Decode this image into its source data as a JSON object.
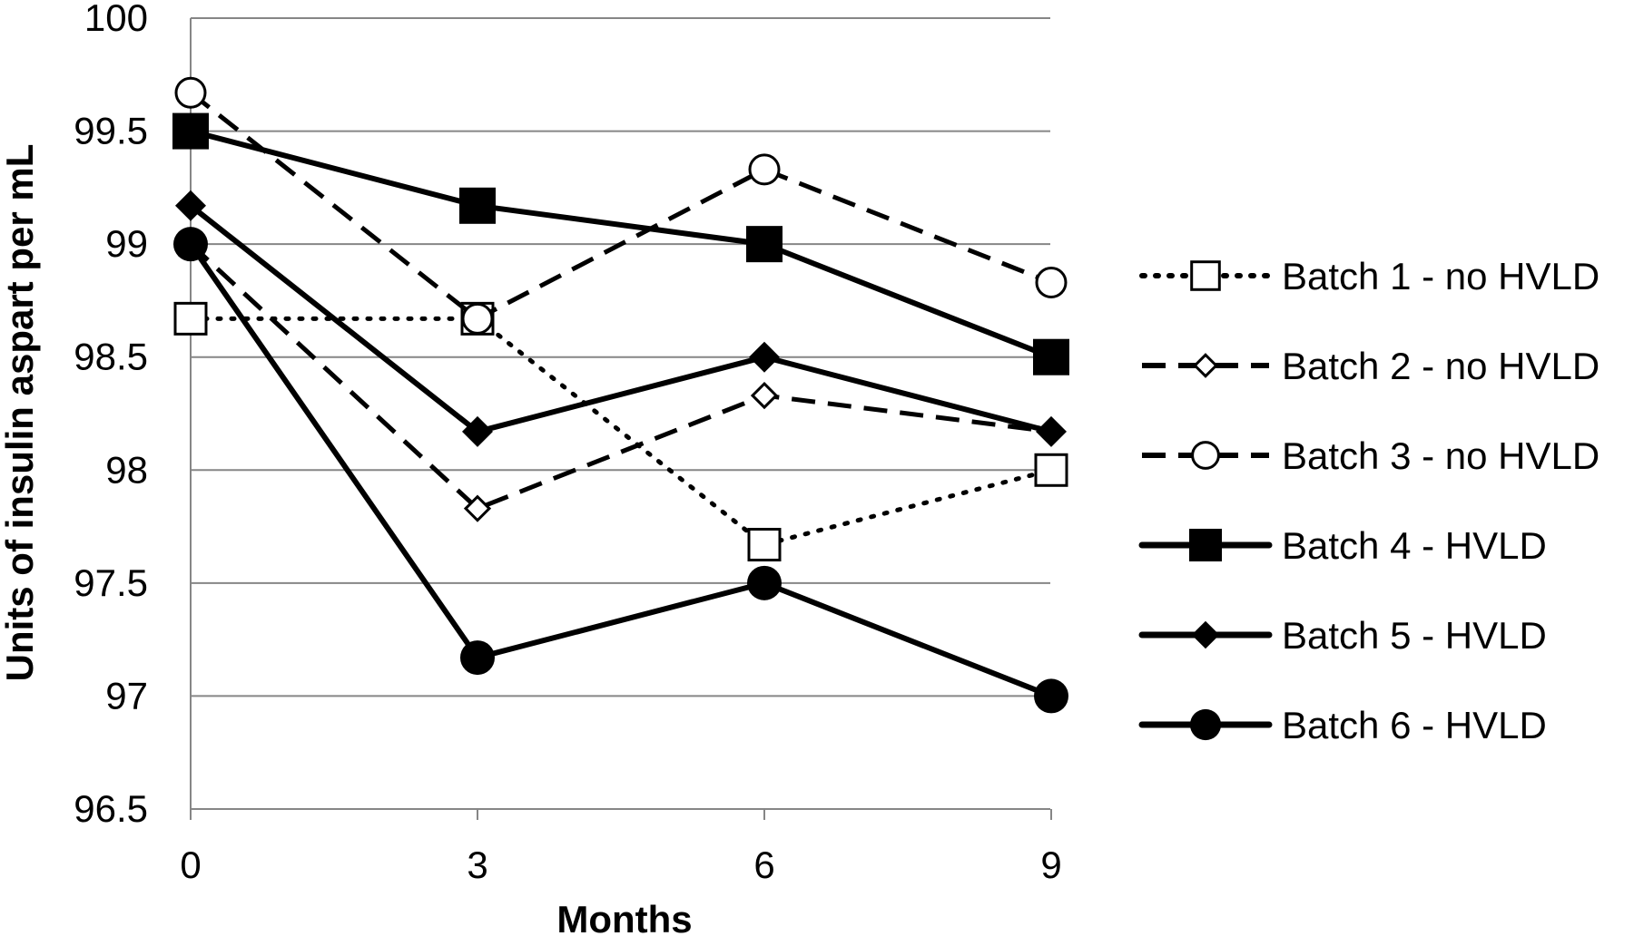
{
  "chart_data": {
    "type": "line",
    "title": "",
    "xlabel": "Months",
    "ylabel": "Units of insulin aspart per mL",
    "x": [
      0,
      3,
      6,
      9
    ],
    "x_tick_labels": [
      "0",
      "3",
      "6",
      "9"
    ],
    "ylim": [
      96.5,
      100
    ],
    "y_ticks": [
      96.5,
      97,
      97.5,
      98,
      98.5,
      99,
      99.5,
      100
    ],
    "y_tick_labels": [
      "96.5",
      "97",
      "97.5",
      "98",
      "98.5",
      "99",
      "99.5",
      "100"
    ],
    "grid": "horizontal",
    "legend_position": "right",
    "series": [
      {
        "name": "Batch 1 - no HVLD",
        "values": [
          98.67,
          98.67,
          97.67,
          98.0
        ],
        "line": "dotted",
        "marker": "open-square"
      },
      {
        "name": "Batch 2 - no HVLD",
        "values": [
          99.0,
          97.83,
          98.33,
          98.17
        ],
        "line": "dashed",
        "marker": "open-diamond"
      },
      {
        "name": "Batch 3 - no HVLD",
        "values": [
          99.67,
          98.67,
          99.33,
          98.83
        ],
        "line": "dashed",
        "marker": "open-circle"
      },
      {
        "name": "Batch 4  - HVLD",
        "values": [
          99.5,
          99.17,
          99.0,
          98.5
        ],
        "line": "solid",
        "marker": "filled-square"
      },
      {
        "name": "Batch 5 - HVLD",
        "values": [
          99.17,
          98.17,
          98.5,
          98.17
        ],
        "line": "solid",
        "marker": "filled-diamond"
      },
      {
        "name": "Batch 6  - HVLD",
        "values": [
          99.0,
          97.17,
          97.5,
          97.0
        ],
        "line": "solid",
        "marker": "filled-circle"
      }
    ]
  },
  "colors": {
    "line": "#000000",
    "grid": "#868686",
    "background": "#ffffff"
  }
}
